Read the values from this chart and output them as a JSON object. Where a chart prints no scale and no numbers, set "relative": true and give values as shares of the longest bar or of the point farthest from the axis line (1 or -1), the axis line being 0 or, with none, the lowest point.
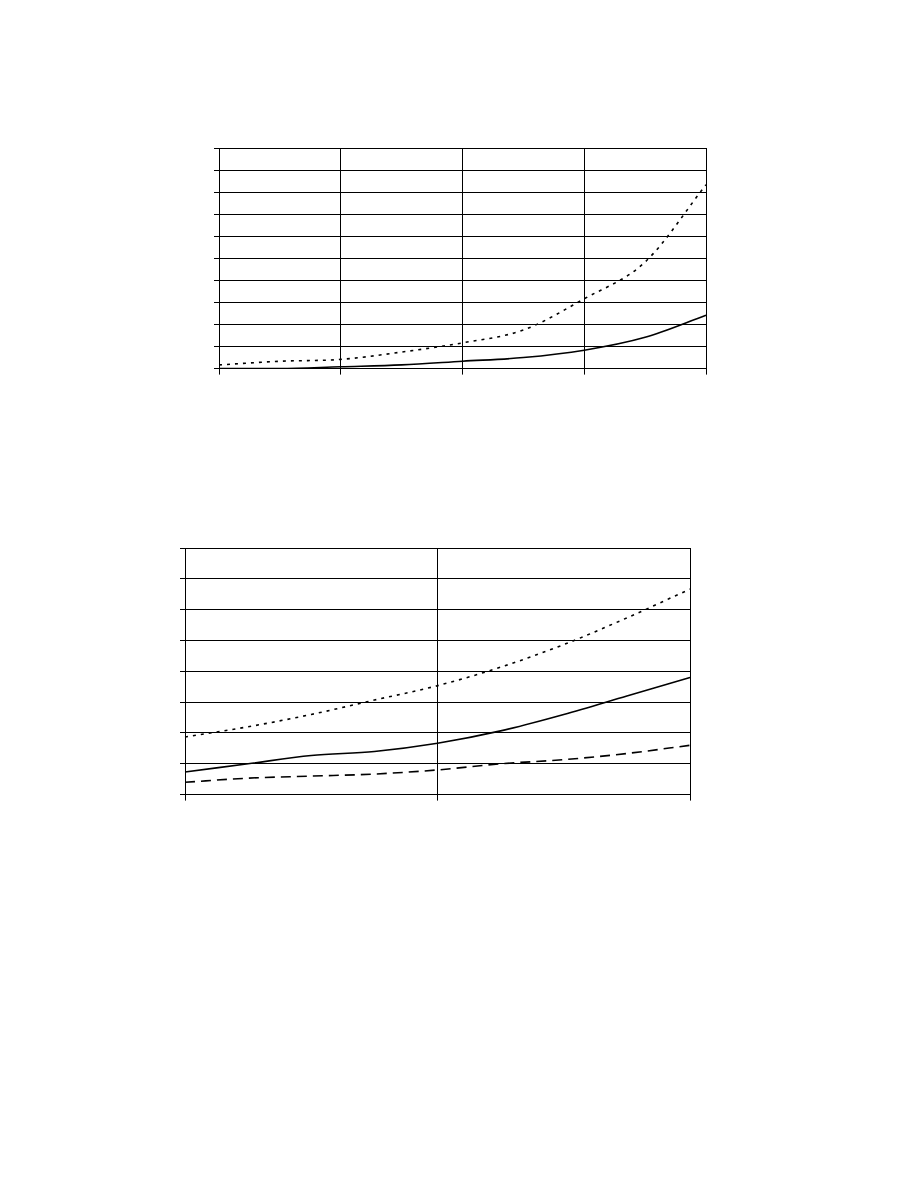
{
  "chart_data": [
    {
      "type": "line",
      "relative": true,
      "categories": [
        null,
        null,
        null,
        null,
        null,
        null,
        null,
        null,
        null
      ],
      "grid": true,
      "legend": false,
      "marker": "none",
      "series": [
        {
          "color": "#000000",
          "line_style": "dotted",
          "values": [
            0.02,
            0.04,
            0.05,
            0.09,
            0.14,
            0.21,
            0.38,
            0.58,
            1
          ]
        },
        {
          "color": "#000000",
          "line_style": "solid",
          "values": [
            0,
            0,
            0.01,
            0.02,
            0.04,
            0.06,
            0.1,
            0.17,
            0.29
          ]
        }
      ]
    },
    {
      "type": "line",
      "relative": true,
      "categories": [
        null,
        null,
        null,
        null,
        null,
        null,
        null,
        null,
        null
      ],
      "grid": true,
      "legend": false,
      "marker": "none",
      "series": [
        {
          "color": "#000000",
          "line_style": "dotted",
          "values": [
            0.28,
            0.33,
            0.39,
            0.46,
            0.53,
            0.62,
            0.73,
            0.86,
            1
          ]
        },
        {
          "color": "#000000",
          "line_style": "solid",
          "values": [
            0.11,
            0.15,
            0.19,
            0.21,
            0.25,
            0.31,
            0.39,
            0.48,
            0.57
          ]
        },
        {
          "color": "#000000",
          "line_style": "dashed",
          "values": [
            0.06,
            0.08,
            0.09,
            0.1,
            0.12,
            0.15,
            0.17,
            0.2,
            0.24
          ]
        }
      ]
    }
  ]
}
